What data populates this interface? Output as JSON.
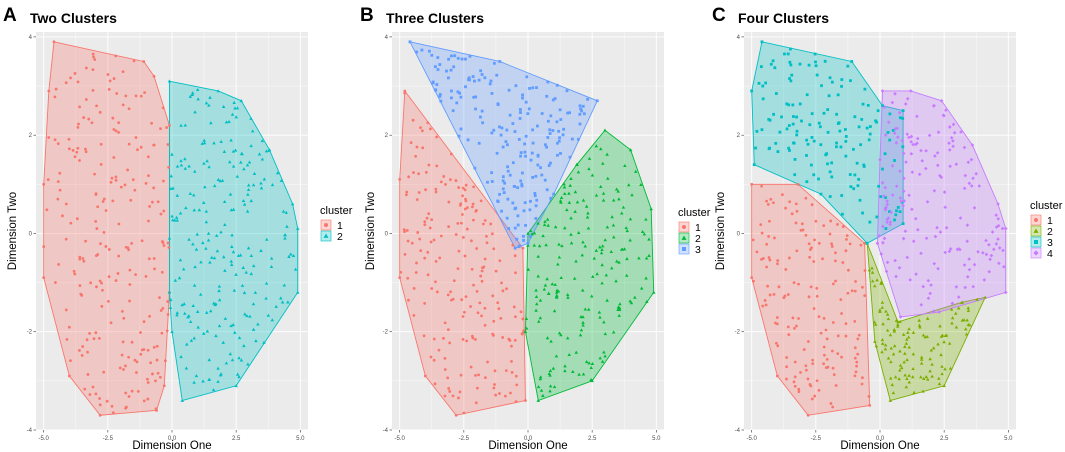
{
  "colors": {
    "cluster1": "#F8766D",
    "cluster2": "#00BFC4",
    "cluster3": "#619CFF",
    "green": "#00BA38",
    "four_c1": "#F8766D",
    "four_c2": "#7CAE00",
    "four_c3": "#00BFC4",
    "four_c4": "#C77CFF",
    "panel_bg": "#EBEBEB"
  },
  "chart_data": [
    {
      "type": "scatter",
      "panel_letter": "A",
      "title": "Two Clusters",
      "xlabel": "Dimension One",
      "ylabel": "Dimension Two",
      "xlim": [
        -5.3,
        5.3
      ],
      "ylim": [
        -4,
        4.1
      ],
      "x_ticks": [
        -5,
        -2.5,
        0,
        2.5,
        5
      ],
      "x_tick_labels": [
        "-5.0",
        "-2.5",
        "0.0",
        "2.5",
        "5.0"
      ],
      "y_ticks": [
        -4,
        -2,
        0,
        2,
        4
      ],
      "y_tick_labels": [
        "-4",
        "-2",
        "0",
        "2",
        "4"
      ],
      "legend_title": "cluster",
      "legend_position": "right",
      "series": [
        {
          "name": "1",
          "shape": "circle",
          "color_key": "cluster1",
          "n_points": 230,
          "hull": [
            [
              -4.6,
              3.9
            ],
            [
              -1.1,
              3.5
            ],
            [
              -0.7,
              3.2
            ],
            [
              -0.1,
              2.2
            ],
            [
              -0.1,
              -1.2
            ],
            [
              -0.3,
              -3.1
            ],
            [
              -0.6,
              -3.6
            ],
            [
              -2.8,
              -3.7
            ],
            [
              -4.0,
              -2.9
            ],
            [
              -5.0,
              -0.9
            ],
            [
              -5.0,
              1.0
            ],
            [
              -4.8,
              2.9
            ]
          ]
        },
        {
          "name": "2",
          "shape": "triangle",
          "color_key": "cluster2",
          "n_points": 230,
          "hull": [
            [
              -0.1,
              3.1
            ],
            [
              1.8,
              2.9
            ],
            [
              2.7,
              2.7
            ],
            [
              3.8,
              1.7
            ],
            [
              4.7,
              0.6
            ],
            [
              4.9,
              0.1
            ],
            [
              4.9,
              -1.2
            ],
            [
              2.5,
              -3.1
            ],
            [
              0.4,
              -3.4
            ],
            [
              0.0,
              -2.0
            ],
            [
              -0.1,
              -1.2
            ]
          ]
        }
      ]
    },
    {
      "type": "scatter",
      "panel_letter": "B",
      "title": "Three Clusters",
      "xlabel": "Dimension One",
      "ylabel": "Dimension Two",
      "xlim": [
        -5.3,
        5.3
      ],
      "ylim": [
        -4,
        4.1
      ],
      "x_ticks": [
        -5,
        -2.5,
        0,
        2.5,
        5
      ],
      "x_tick_labels": [
        "-5.0",
        "-2.5",
        "0.0",
        "2.5",
        "5.0"
      ],
      "y_ticks": [
        -4,
        -2,
        0,
        2,
        4
      ],
      "y_tick_labels": [
        "-4",
        "-2",
        "0",
        "2",
        "4"
      ],
      "legend_title": "cluster",
      "legend_position": "right",
      "series": [
        {
          "name": "1",
          "shape": "circle",
          "color_key": "cluster1",
          "n_points": 200,
          "hull": [
            [
              -4.8,
              2.9
            ],
            [
              -0.2,
              -0.3
            ],
            [
              -0.1,
              -3.4
            ],
            [
              -2.8,
              -3.7
            ],
            [
              -4.0,
              -2.9
            ],
            [
              -5.0,
              -0.9
            ],
            [
              -5.0,
              1.1
            ]
          ]
        },
        {
          "name": "2",
          "shape": "triangle",
          "color_key": "green",
          "n_points": 200,
          "hull": [
            [
              0.0,
              0.0
            ],
            [
              1.9,
              1.4
            ],
            [
              3.0,
              2.1
            ],
            [
              4.0,
              1.7
            ],
            [
              4.8,
              0.5
            ],
            [
              4.9,
              -1.2
            ],
            [
              2.5,
              -3.0
            ],
            [
              0.4,
              -3.4
            ],
            [
              -0.1,
              -2.0
            ]
          ]
        },
        {
          "name": "3",
          "shape": "square",
          "color_key": "cluster3",
          "n_points": 200,
          "hull": [
            [
              -4.6,
              3.9
            ],
            [
              -1.1,
              3.5
            ],
            [
              2.7,
              2.7
            ],
            [
              1.0,
              0.8
            ],
            [
              0.0,
              -0.2
            ],
            [
              -0.5,
              -0.3
            ]
          ]
        }
      ]
    },
    {
      "type": "scatter",
      "panel_letter": "C",
      "title": "Four Clusters",
      "xlabel": "Dimension One",
      "ylabel": "Dimension Two",
      "xlim": [
        -5.3,
        5.3
      ],
      "ylim": [
        -4,
        4.1
      ],
      "x_ticks": [
        -5,
        -2.5,
        0,
        2.5,
        5
      ],
      "x_tick_labels": [
        "-5.0",
        "-2.5",
        "0.0",
        "2.5",
        "5.0"
      ],
      "y_ticks": [
        -4,
        -2,
        0,
        2,
        4
      ],
      "y_tick_labels": [
        "-4",
        "-2",
        "0",
        "2",
        "4"
      ],
      "legend_title": "cluster",
      "legend_position": "right",
      "series": [
        {
          "name": "1",
          "shape": "circle",
          "color_key": "four_c1",
          "n_points": 160,
          "hull": [
            [
              -5.0,
              1.0
            ],
            [
              -3.2,
              1.0
            ],
            [
              -0.6,
              -0.2
            ],
            [
              -0.4,
              -3.5
            ],
            [
              -2.8,
              -3.7
            ],
            [
              -4.0,
              -2.9
            ],
            [
              -5.0,
              -0.9
            ]
          ]
        },
        {
          "name": "2",
          "shape": "triangle",
          "color_key": "four_c2",
          "n_points": 120,
          "hull": [
            [
              -0.5,
              -0.2
            ],
            [
              0.7,
              -1.8
            ],
            [
              3.2,
              -1.4
            ],
            [
              4.1,
              -1.3
            ],
            [
              2.5,
              -3.1
            ],
            [
              0.4,
              -3.4
            ],
            [
              -0.2,
              -2.2
            ]
          ]
        },
        {
          "name": "3",
          "shape": "square",
          "color_key": "four_c3",
          "n_points": 150,
          "hull": [
            [
              -4.6,
              3.9
            ],
            [
              -1.1,
              3.5
            ],
            [
              0.1,
              2.6
            ],
            [
              0.9,
              2.5
            ],
            [
              0.9,
              0.2
            ],
            [
              -0.5,
              -0.2
            ],
            [
              -2.3,
              0.8
            ],
            [
              -4.9,
              1.4
            ],
            [
              -5.0,
              2.9
            ]
          ]
        },
        {
          "name": "4",
          "shape": "diamond",
          "color_key": "four_c4",
          "n_points": 170,
          "hull": [
            [
              0.1,
              2.9
            ],
            [
              1.2,
              2.9
            ],
            [
              2.4,
              2.7
            ],
            [
              3.6,
              1.8
            ],
            [
              4.6,
              0.6
            ],
            [
              4.9,
              0.1
            ],
            [
              4.9,
              -1.2
            ],
            [
              2.3,
              -1.6
            ],
            [
              0.8,
              -1.7
            ],
            [
              -0.1,
              -0.2
            ],
            [
              0.0,
              1.5
            ]
          ]
        }
      ]
    }
  ]
}
